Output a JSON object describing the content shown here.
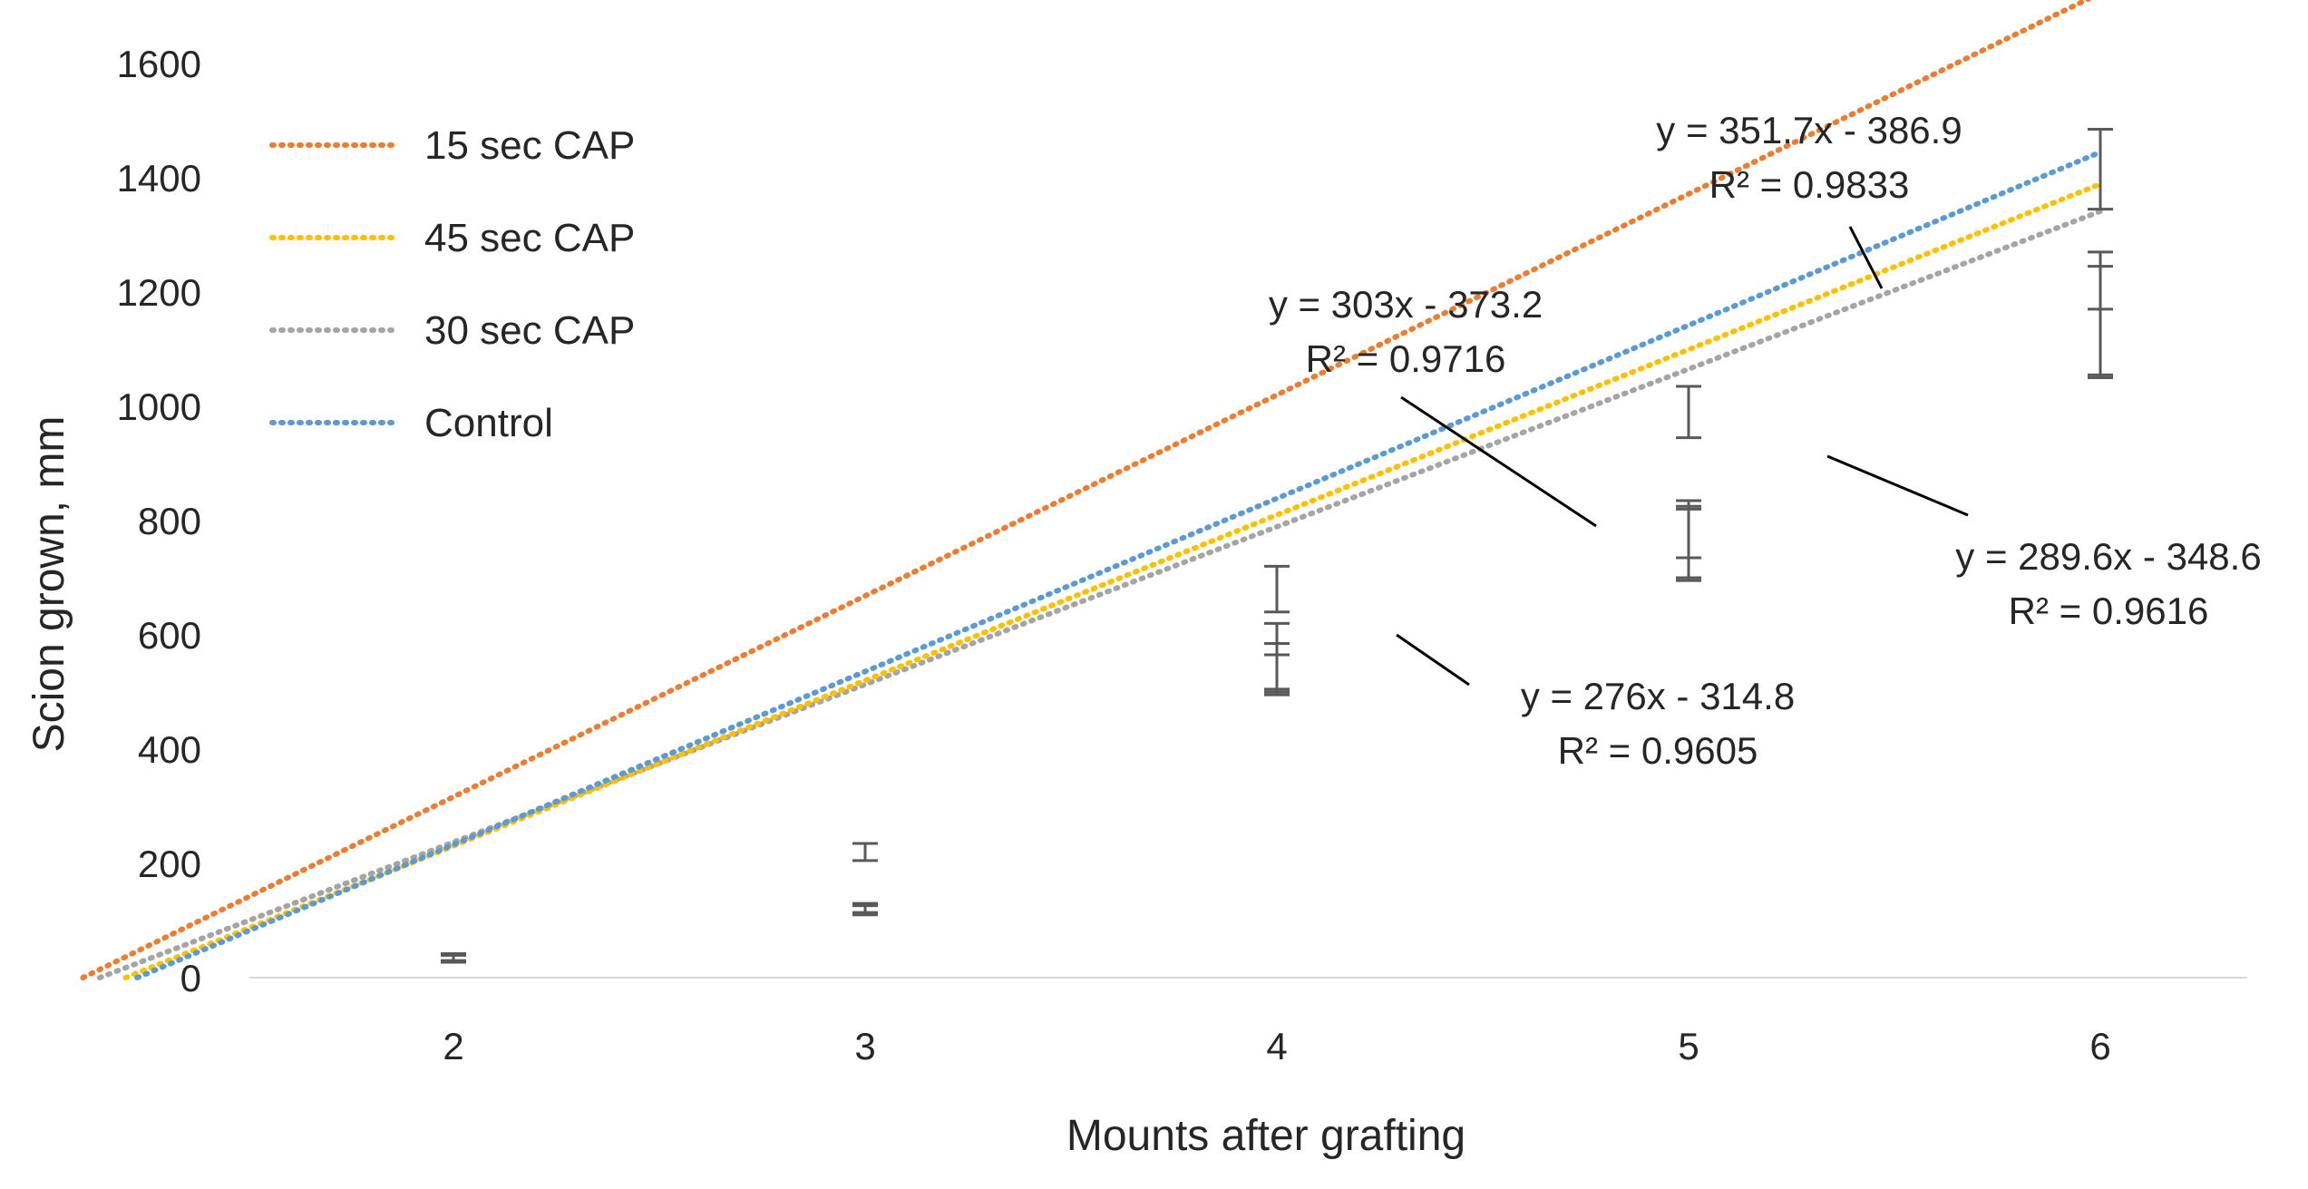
{
  "chart_data": {
    "type": "scatter",
    "title": "",
    "xlabel": "Mounts after grafting",
    "ylabel": "Scion grown, mm",
    "x_ticks": [
      2,
      3,
      4,
      5,
      6
    ],
    "y_ticks": [
      0,
      200,
      400,
      600,
      800,
      1000,
      1200,
      1400,
      1600
    ],
    "xlim": [
      1.5,
      6.5
    ],
    "ylim": [
      0,
      1600
    ],
    "grid": false,
    "legend_position": "top-left",
    "series": [
      {
        "name": "15 sec CAP",
        "color": "#ED7D31",
        "trendline": "linear",
        "slope": 351.7,
        "intercept": -386.9,
        "equation": "y = 351.7x - 386.9",
        "r2_label": "R² = 0.9833",
        "x": [
          2,
          3,
          4,
          5,
          6
        ],
        "y": [
          35,
          120,
          680,
          990,
          1415
        ],
        "error": [
          6,
          8,
          40,
          45,
          70
        ]
      },
      {
        "name": "45 sec CAP",
        "color": "#FFC000",
        "trendline": "linear",
        "slope": 289.6,
        "intercept": -348.6,
        "equation": "y = 289.6x - 348.6",
        "r2_label": "R² = 0.9616",
        "x": [
          2,
          3,
          4,
          5,
          6
        ],
        "y": [
          33,
          122,
          545,
          765,
          1150
        ],
        "error": [
          6,
          8,
          40,
          70,
          95
        ]
      },
      {
        "name": "30 sec CAP",
        "color": "#A5A5A5",
        "trendline": "linear",
        "slope": 276,
        "intercept": -314.8,
        "equation": "y = 276x - 314.8",
        "r2_label": "R² = 0.9605",
        "x": [
          2,
          3,
          4,
          5,
          6
        ],
        "y": [
          35,
          118,
          530,
          760,
          1110
        ],
        "error": [
          6,
          8,
          35,
          60,
          60
        ]
      },
      {
        "name": "Control",
        "color": "#5B9BD5",
        "trendline": "linear",
        "slope": 303,
        "intercept": -373.2,
        "equation": "y = 303x - 373.2",
        "r2_label": "R² = 0.9716",
        "x": [
          2,
          3,
          4,
          5,
          6
        ],
        "y": [
          36,
          220,
          560,
          780,
          1160
        ],
        "error": [
          6,
          15,
          60,
          45,
          110
        ]
      }
    ]
  }
}
